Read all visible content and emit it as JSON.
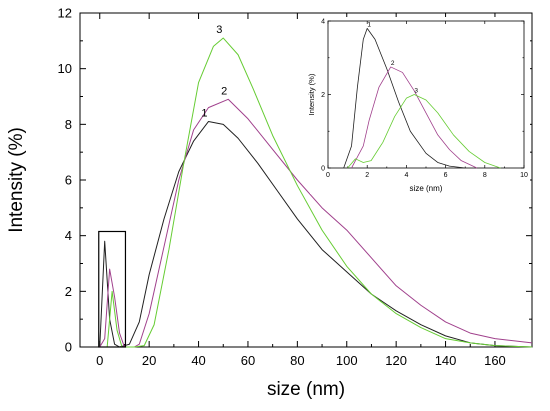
{
  "chart_data": [
    {
      "type": "line",
      "xlabel": "size (nm)",
      "ylabel": "Intensity (%)",
      "xlim": [
        -8,
        175
      ],
      "ylim": [
        0,
        12
      ],
      "xticks": [
        0,
        20,
        40,
        60,
        80,
        100,
        120,
        140,
        160
      ],
      "yticks": [
        0,
        2,
        4,
        6,
        8,
        10,
        12
      ],
      "grid": false,
      "series": [
        {
          "name": "1",
          "color": "#202020",
          "x": [
            0,
            2,
            4,
            6,
            8,
            12,
            16,
            20,
            26,
            32,
            38,
            44,
            50,
            56,
            64,
            72,
            80,
            90,
            100,
            110,
            120,
            130,
            140,
            150,
            160,
            175
          ],
          "y": [
            0,
            3.8,
            1.0,
            0.1,
            0,
            0.1,
            0.9,
            2.6,
            4.6,
            6.3,
            7.4,
            8.1,
            8.0,
            7.5,
            6.6,
            5.6,
            4.6,
            3.5,
            2.7,
            1.9,
            1.3,
            0.8,
            0.4,
            0.15,
            0.05,
            0
          ]
        },
        {
          "name": "2",
          "color": "#a0408c",
          "x": [
            0,
            2,
            4,
            6,
            8,
            10,
            14,
            16,
            20,
            26,
            32,
            38,
            44,
            52,
            60,
            70,
            80,
            90,
            100,
            110,
            120,
            130,
            140,
            150,
            160,
            175
          ],
          "y": [
            0,
            0.3,
            2.8,
            1.8,
            0.5,
            0,
            0,
            0.1,
            1.2,
            3.6,
            6.0,
            7.8,
            8.6,
            8.9,
            8.2,
            7.1,
            6.0,
            5.0,
            4.2,
            3.2,
            2.2,
            1.5,
            0.9,
            0.5,
            0.3,
            0.15
          ]
        },
        {
          "name": "3",
          "color": "#66cc33",
          "x": [
            0,
            3,
            5,
            7,
            9,
            12,
            14,
            18,
            22,
            28,
            34,
            40,
            46,
            50,
            56,
            62,
            70,
            80,
            90,
            100,
            110,
            120,
            130,
            140,
            150,
            160,
            175
          ],
          "y": [
            0,
            0,
            2.0,
            0.6,
            0,
            0,
            0,
            0.05,
            0.8,
            3.5,
            6.6,
            9.5,
            10.8,
            11.1,
            10.5,
            9.3,
            7.6,
            5.8,
            4.2,
            2.9,
            1.9,
            1.2,
            0.7,
            0.3,
            0.15,
            0.05,
            0
          ]
        }
      ],
      "annotations": [
        "1",
        "2",
        "3"
      ],
      "highlight_box": {
        "x": [
          0,
          10
        ],
        "y": [
          0,
          4.15
        ]
      }
    },
    {
      "type": "line",
      "xlabel": "size (nm)",
      "ylabel": "Intensity (%)",
      "xlim": [
        0,
        10
      ],
      "ylim": [
        0,
        4
      ],
      "xticks": [
        0,
        2,
        4,
        6,
        8,
        10
      ],
      "yticks": [
        0,
        2,
        4
      ],
      "grid": false,
      "series": [
        {
          "name": "1",
          "color": "#202020",
          "x": [
            0.8,
            1.2,
            1.5,
            1.8,
            2.0,
            2.4,
            3.0,
            3.6,
            4.2,
            5.0,
            5.6,
            6.2,
            7.0
          ],
          "y": [
            0,
            0.6,
            2.2,
            3.5,
            3.8,
            3.5,
            2.7,
            1.8,
            1.0,
            0.4,
            0.15,
            0.05,
            0
          ]
        },
        {
          "name": "2",
          "color": "#a0408c",
          "x": [
            1.2,
            1.5,
            1.8,
            2.1,
            2.6,
            3.2,
            3.8,
            4.4,
            5.0,
            5.6,
            6.2,
            6.8,
            7.6
          ],
          "y": [
            0,
            0.3,
            0.6,
            1.3,
            2.2,
            2.75,
            2.6,
            2.1,
            1.5,
            0.9,
            0.5,
            0.2,
            0
          ]
        },
        {
          "name": "3",
          "color": "#66cc33",
          "x": [
            1.0,
            1.4,
            1.8,
            2.2,
            2.8,
            3.4,
            4.0,
            4.4,
            5.0,
            5.6,
            6.4,
            7.2,
            8.0,
            8.8
          ],
          "y": [
            0,
            0.25,
            0.15,
            0.2,
            0.7,
            1.4,
            1.9,
            2.0,
            1.85,
            1.5,
            0.9,
            0.45,
            0.15,
            0
          ]
        }
      ],
      "annotations": [
        "1",
        "2",
        "3"
      ],
      "position": "top-right inset"
    }
  ]
}
